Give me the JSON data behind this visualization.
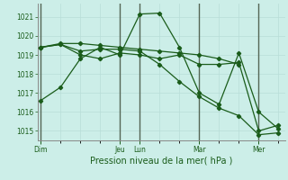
{
  "xlabel": "Pression niveau de la mer( hPa )",
  "ylim": [
    1014.5,
    1021.7
  ],
  "yticks": [
    1015,
    1016,
    1017,
    1018,
    1019,
    1020,
    1021
  ],
  "bg_color": "#cceee8",
  "grid_color_minor": "#b8ddd8",
  "grid_color_major": "#99cccc",
  "line_color": "#1a5c1a",
  "marker_color": "#1a5c1a",
  "x_day_labels": [
    "Dim",
    "Jeu",
    "Lun",
    "Mar",
    "Mer"
  ],
  "x_day_positions": [
    0,
    12,
    15,
    24,
    33
  ],
  "xlim": [
    -0.5,
    37
  ],
  "series": [
    {
      "x": [
        0,
        3,
        6,
        9,
        12,
        15,
        18,
        21,
        24,
        27,
        30,
        33,
        36
      ],
      "y": [
        1016.6,
        1017.3,
        1018.8,
        1019.4,
        1019.0,
        1021.15,
        1021.2,
        1019.4,
        1017.0,
        1016.4,
        1019.1,
        1016.0,
        1015.1
      ]
    },
    {
      "x": [
        0,
        3,
        6,
        9,
        12,
        15,
        18,
        21,
        24,
        27,
        30,
        33,
        36
      ],
      "y": [
        1019.4,
        1019.55,
        1019.0,
        1018.8,
        1019.1,
        1019.0,
        1018.8,
        1019.0,
        1018.5,
        1018.5,
        1018.6,
        1015.0,
        1015.3
      ]
    },
    {
      "x": [
        0,
        3,
        6,
        9,
        12,
        15,
        18,
        21,
        24,
        27,
        30,
        33,
        36
      ],
      "y": [
        1019.4,
        1019.55,
        1019.2,
        1019.3,
        1019.3,
        1019.2,
        1018.5,
        1017.6,
        1016.8,
        1016.2,
        1015.8,
        1014.8,
        1014.9
      ]
    },
    {
      "x": [
        0,
        3,
        6,
        9,
        12,
        15,
        18,
        21,
        24,
        27,
        30
      ],
      "y": [
        1019.4,
        1019.6,
        1019.6,
        1019.5,
        1019.4,
        1019.3,
        1019.2,
        1019.1,
        1019.0,
        1018.8,
        1018.5
      ]
    }
  ],
  "vline_positions": [
    0,
    12,
    15,
    24,
    33
  ],
  "vline_color": "#556655",
  "figsize": [
    3.2,
    2.0
  ],
  "dpi": 100
}
